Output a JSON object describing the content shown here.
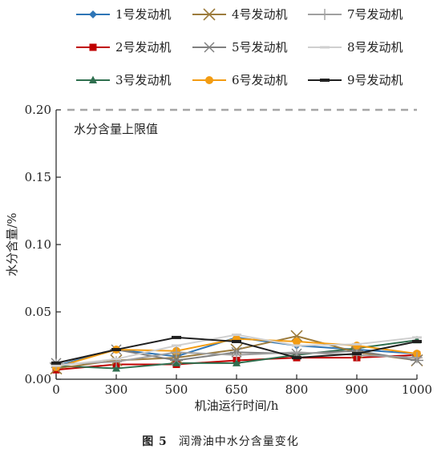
{
  "chart_data": {
    "type": "line",
    "xlabel": "机油运行时间/h",
    "ylabel": "水分含量/%",
    "categories": [
      "0",
      "300",
      "500",
      "650",
      "800",
      "900",
      "1000"
    ],
    "yticks": [
      "0.00",
      "0.05",
      "0.10",
      "0.15",
      "0.20"
    ],
    "ylim": [
      0,
      0.2
    ],
    "grid": false,
    "legend_position": "top",
    "limit_line": {
      "value": 0.2,
      "label": "水分含量上限值",
      "color": "#a6a6a6"
    },
    "series": [
      {
        "name": "1号发动机",
        "color": "#2e75b6",
        "marker": "diamond",
        "values": [
          0.01,
          0.022,
          0.017,
          0.031,
          0.025,
          0.022,
          0.019
        ]
      },
      {
        "name": "2号发动机",
        "color": "#c00000",
        "marker": "square",
        "values": [
          0.007,
          0.011,
          0.011,
          0.014,
          0.016,
          0.016,
          0.018
        ]
      },
      {
        "name": "3号发动机",
        "color": "#2f6f4f",
        "marker": "triangle",
        "values": [
          0.01,
          0.008,
          0.012,
          0.012,
          0.018,
          0.023,
          0.029
        ]
      },
      {
        "name": "4号发动机",
        "color": "#9c7b3c",
        "marker": "x",
        "values": [
          0.008,
          0.014,
          0.016,
          0.022,
          0.032,
          0.02,
          0.014
        ]
      },
      {
        "name": "5号发动机",
        "color": "#7f7f7f",
        "marker": "asterisk",
        "values": [
          0.012,
          0.022,
          0.014,
          0.02,
          0.019,
          0.021,
          0.014
        ]
      },
      {
        "name": "6号发动机",
        "color": "#f39c12",
        "marker": "circle",
        "values": [
          0.009,
          0.022,
          0.021,
          0.03,
          0.028,
          0.025,
          0.019
        ]
      },
      {
        "name": "7号发动机",
        "color": "#a0a0a0",
        "marker": "plus",
        "values": [
          0.011,
          0.013,
          0.02,
          0.018,
          0.02,
          0.018,
          0.016
        ]
      },
      {
        "name": "8号发动机",
        "color": "#cfcfcf",
        "marker": "dash",
        "values": [
          0.01,
          0.015,
          0.025,
          0.033,
          0.025,
          0.026,
          0.031
        ]
      },
      {
        "name": "9号发动机",
        "color": "#1f1f1f",
        "marker": "bar",
        "values": [
          0.012,
          0.022,
          0.031,
          0.028,
          0.016,
          0.019,
          0.028
        ]
      }
    ]
  },
  "caption": {
    "figure_label": "图 5",
    "figure_title": "润滑油中水分含量变化"
  }
}
